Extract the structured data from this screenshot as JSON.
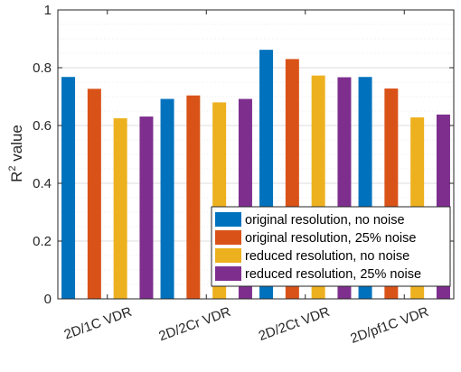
{
  "chart_data": {
    "type": "bar",
    "categories": [
      "2D/1C VDR",
      "2D/2Cr VDR",
      "2D/2Ct VDR",
      "2D/pf1C VDR"
    ],
    "series": [
      {
        "name": "original resolution, no noise",
        "color": "#0072BD",
        "values": [
          0.768,
          0.692,
          0.862,
          0.768
        ]
      },
      {
        "name": "original resolution, 25% noise",
        "color": "#D95319",
        "values": [
          0.727,
          0.704,
          0.83,
          0.728
        ]
      },
      {
        "name": "reduced resolution, no noise",
        "color": "#EDB120",
        "values": [
          0.625,
          0.68,
          0.773,
          0.628
        ]
      },
      {
        "name": "reduced resolution, 25% noise",
        "color": "#7E2F8E",
        "values": [
          0.631,
          0.692,
          0.767,
          0.638
        ]
      }
    ],
    "ylabel_base": "R",
    "ylabel_sup": "2",
    "ylabel_rest": " value",
    "ylim": [
      0,
      1
    ],
    "yticks": [
      "0",
      "0.2",
      "0.4",
      "0.6",
      "0.8",
      "1"
    ],
    "ytick_values": [
      0,
      0.2,
      0.4,
      0.6,
      0.8,
      1.0
    ],
    "minor_grid_step": 0.05,
    "grid": true,
    "legend_location": "bottom-right"
  }
}
